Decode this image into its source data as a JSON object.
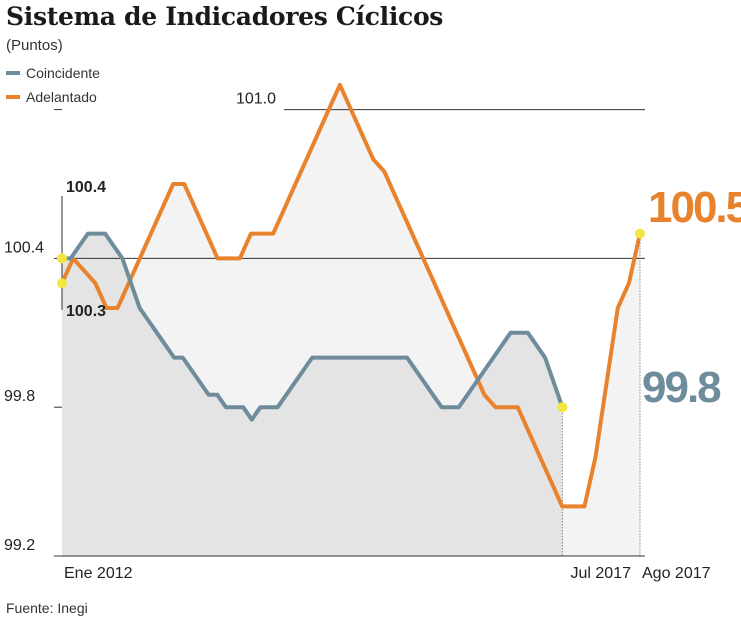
{
  "title": "Sistema de Indicadores Cíclicos",
  "subtitle": "(Puntos)",
  "source": "Fuente: Inegi",
  "colors": {
    "coincidente": "#6f8c9c",
    "adelantado": "#e8822c",
    "marker": "#f2e640"
  },
  "chart_data": {
    "type": "line",
    "ylim": [
      99.2,
      101.2
    ],
    "yticks": [
      {
        "value": 99.2,
        "label": "99.2"
      },
      {
        "value": 99.8,
        "label": "99.8"
      },
      {
        "value": 100.4,
        "label": "100.4"
      },
      {
        "value": 101.0,
        "label": "101.0"
      }
    ],
    "xlabels": [
      {
        "index": 0,
        "label": "Ene 2012"
      },
      {
        "index": 66,
        "label": "Jul 2017"
      },
      {
        "index": 67,
        "label": "Ago 2017"
      }
    ],
    "x_range": [
      0,
      67
    ],
    "series": [
      {
        "name": "Coincidente",
        "color": "#6f8c9c",
        "values": [
          100.4,
          100.4,
          100.45,
          100.5,
          100.5,
          100.5,
          100.45,
          100.4,
          100.3,
          100.2,
          100.15,
          100.1,
          100.05,
          100.0,
          100.0,
          99.95,
          99.9,
          99.85,
          99.85,
          99.8,
          99.8,
          99.8,
          99.75,
          99.8,
          99.8,
          99.8,
          99.85,
          99.9,
          99.95,
          100.0,
          100.0,
          100.0,
          100.0,
          100.0,
          100.0,
          100.0,
          100.0,
          100.0,
          100.0,
          100.0,
          100.0,
          99.95,
          99.9,
          99.85,
          99.8,
          99.8,
          99.8,
          99.85,
          99.9,
          99.95,
          100.0,
          100.05,
          100.1,
          100.1,
          100.1,
          100.05,
          100.0,
          99.9,
          99.8
        ],
        "last_label": "99.8"
      },
      {
        "name": "Adelantado",
        "color": "#e8822c",
        "values": [
          100.3,
          100.4,
          100.35,
          100.3,
          100.2,
          100.2,
          100.3,
          100.4,
          100.5,
          100.6,
          100.7,
          100.7,
          100.6,
          100.5,
          100.4,
          100.4,
          100.4,
          100.5,
          100.5,
          100.5,
          100.6,
          100.7,
          100.8,
          100.9,
          101.0,
          101.1,
          101.0,
          100.9,
          100.8,
          100.75,
          100.65,
          100.55,
          100.45,
          100.35,
          100.25,
          100.15,
          100.05,
          99.95,
          99.85,
          99.8,
          99.8,
          99.8,
          99.7,
          99.6,
          99.5,
          99.4,
          99.4,
          99.4,
          99.6,
          99.9,
          100.2,
          100.3,
          100.5
        ],
        "last_label": "100.5"
      }
    ],
    "annotations": [
      {
        "text": "100.4",
        "series": "Coincidente",
        "index": 0
      },
      {
        "text": "100.3",
        "series": "Adelantado",
        "index": 0
      }
    ],
    "reference_lines": [
      {
        "label": "101.0",
        "value": 101.0
      },
      {
        "label": "100.4",
        "value": 100.4
      }
    ]
  }
}
